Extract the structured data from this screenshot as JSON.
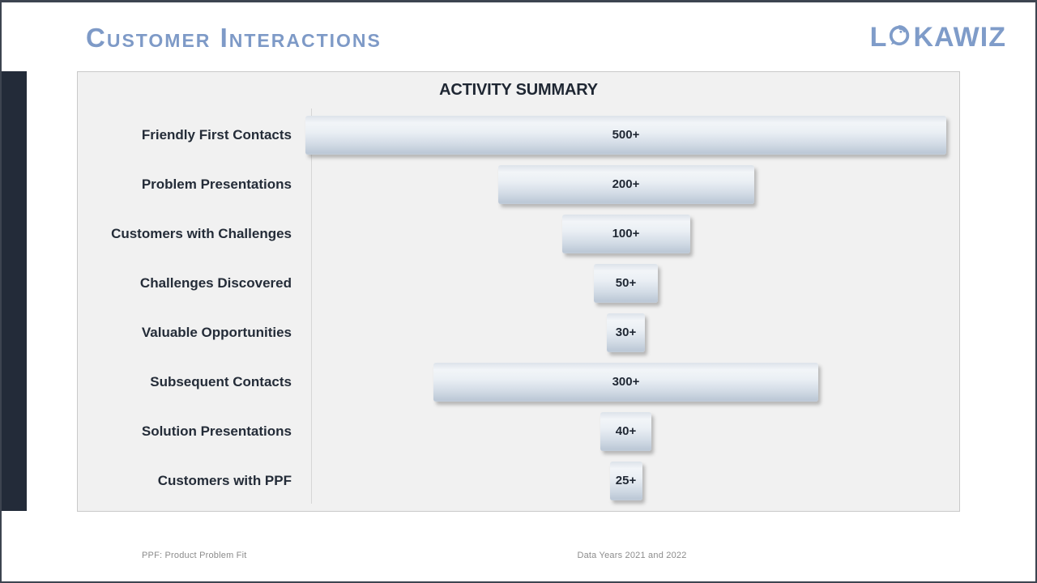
{
  "slide": {
    "title": "Customer Interactions",
    "logo": {
      "prefix": "L",
      "suffix": "KAWIZ",
      "icon": "signal-bubble-icon"
    },
    "footer_left": "PPF: Product Problem Fit",
    "footer_right": "Data Years 2021 and 2022"
  },
  "chart_data": {
    "type": "bar",
    "orientation": "horizontal-centered-funnel",
    "title": "ACTIVITY SUMMARY",
    "categories": [
      "Friendly First Contacts",
      "Problem Presentations",
      "Customers with Challenges",
      "Challenges Discovered",
      "Valuable Opportunities",
      "Subsequent Contacts",
      "Solution Presentations",
      "Customers with PPF"
    ],
    "values": [
      500,
      200,
      100,
      50,
      30,
      300,
      40,
      25
    ],
    "value_labels": [
      "500+",
      "200+",
      "100+",
      "50+",
      "30+",
      "300+",
      "40+",
      "25+"
    ],
    "xlim": [
      0,
      500
    ],
    "grid": false,
    "legend": "none"
  },
  "colors": {
    "accent_blue": "#7e9ac7",
    "dark_navy": "#232b39",
    "panel_bg": "#f1f1f1",
    "text_dark": "#1f2733",
    "footer_gray": "#8c8c8c",
    "bar_gradient_light": "#f2f5f8",
    "bar_gradient_dark": "#bcc8d6"
  }
}
